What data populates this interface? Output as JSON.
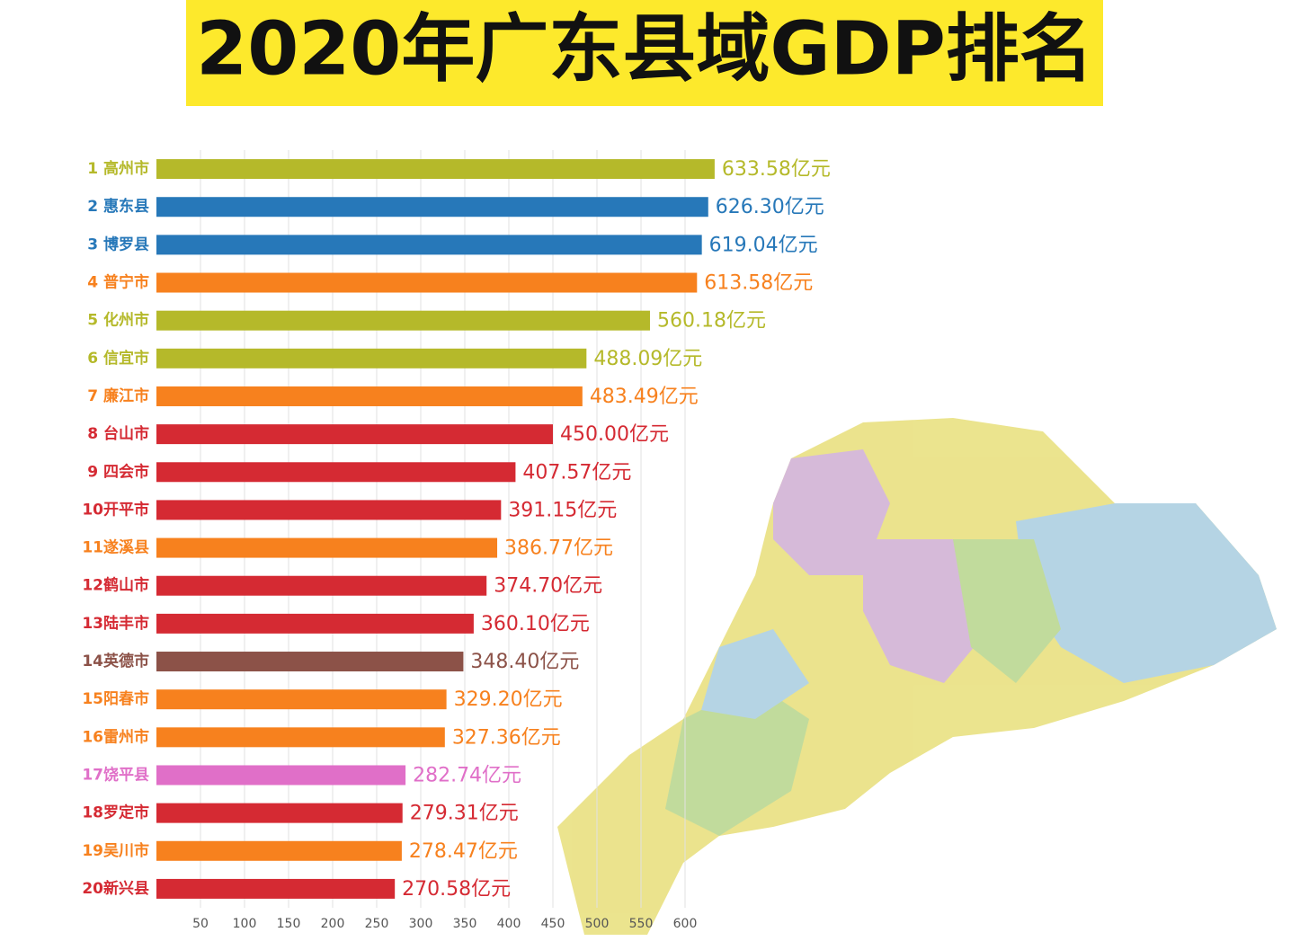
{
  "chart_data": {
    "type": "barh",
    "title": "2020年广东县域GDP排名",
    "categories": [
      "1 高州市",
      "2 惠东县",
      "3 博罗县",
      "4 普宁市",
      "5 化州市",
      "6 信宜市",
      "7 廉江市",
      "8 台山市",
      "9 四会市",
      "10开平市",
      "11遂溪县",
      "12鹤山市",
      "13陆丰市",
      "14英德市",
      "15阳春市",
      "16雷州市",
      "17饶平县",
      "18罗定市",
      "19吴川市",
      "20新兴县"
    ],
    "values": [
      633.58,
      626.3,
      619.04,
      613.58,
      560.18,
      488.09,
      483.49,
      450.0,
      407.57,
      391.15,
      386.77,
      374.7,
      360.1,
      348.4,
      329.2,
      327.36,
      282.74,
      279.31,
      278.47,
      270.58
    ],
    "value_labels": [
      "633.58亿元",
      "626.30亿元",
      "619.04亿元",
      "613.58亿元",
      "560.18亿元",
      "488.09亿元",
      "483.49亿元",
      "450.00亿元",
      "407.57亿元",
      "391.15亿元",
      "386.77亿元",
      "374.70亿元",
      "360.10亿元",
      "348.40亿元",
      "329.20亿元",
      "327.36亿元",
      "282.74亿元",
      "279.31亿元",
      "278.47亿元",
      "270.58亿元"
    ],
    "colors": [
      "#b5b92a",
      "#2778b9",
      "#2778b9",
      "#f7811e",
      "#b5b92a",
      "#b5b92a",
      "#f7811e",
      "#d52a33",
      "#d52a33",
      "#d52a33",
      "#f7811e",
      "#d52a33",
      "#d52a33",
      "#8c5248",
      "#f7811e",
      "#f7811e",
      "#e06fc8",
      "#d52a33",
      "#f7811e",
      "#d52a33"
    ],
    "xlim": [
      0,
      650
    ],
    "xticks": [
      50,
      100,
      150,
      200,
      250,
      300,
      350,
      400,
      450,
      500,
      550,
      600
    ],
    "grid": true
  }
}
